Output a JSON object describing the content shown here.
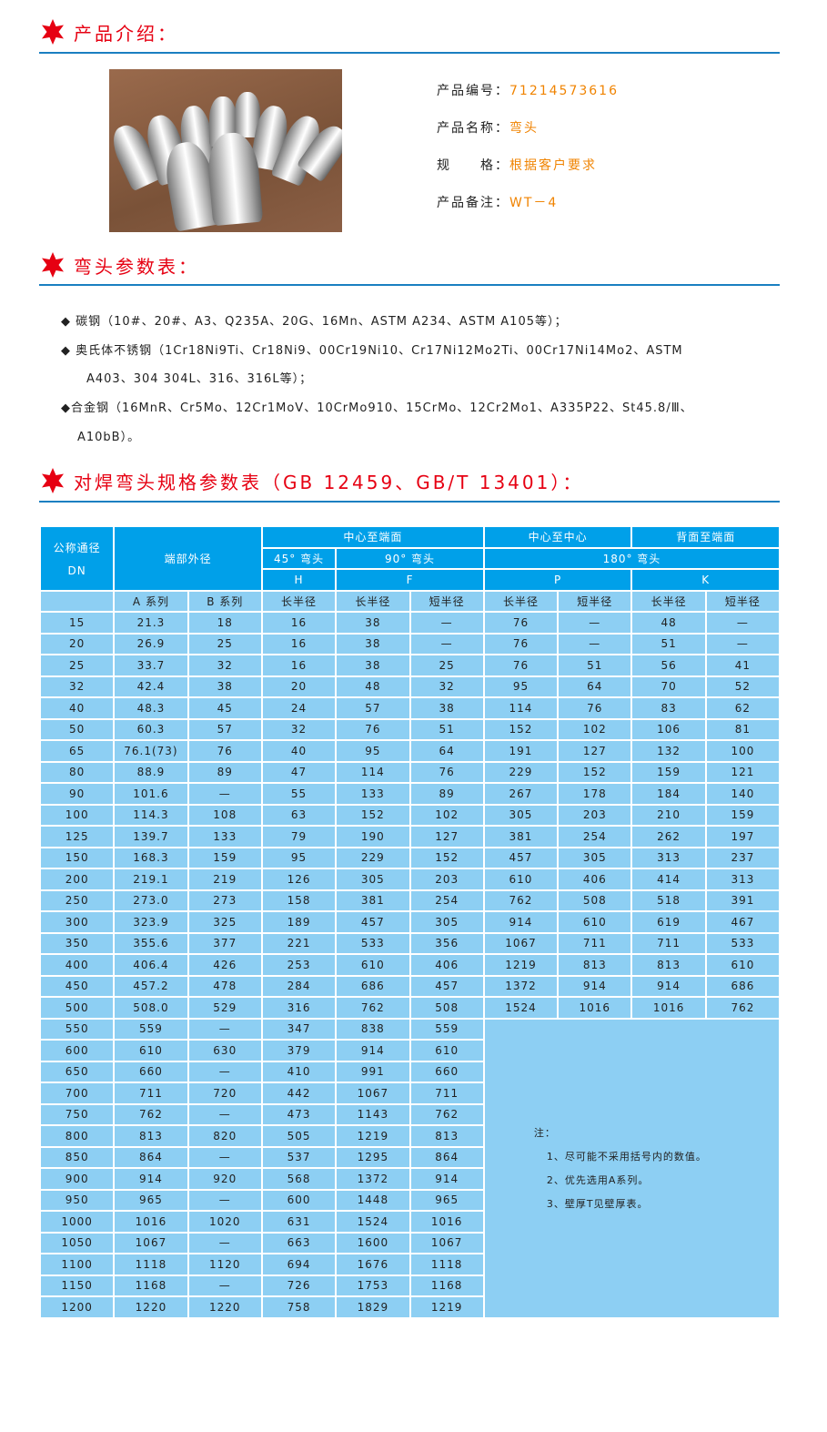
{
  "sections": {
    "intro_title": "产品介绍：",
    "params_title": "弯头参数表：",
    "spec_title": "对焊弯头规格参数表（GB 12459、GB/T 13401）："
  },
  "colors": {
    "accent_red": "#e60012",
    "rule_blue": "#1a7fc1",
    "value_orange": "#f08300",
    "header_blue": "#00a0e9",
    "cell_blue": "#8dcff3"
  },
  "product": {
    "image_alt": "stainless steel elbows",
    "fields": [
      {
        "label": "产品编号：",
        "value": "71214573616"
      },
      {
        "label": "产品名称：",
        "value": "弯头"
      },
      {
        "label": "规　　格：",
        "value": "根据客户要求"
      },
      {
        "label": "产品备注：",
        "value": "WT－4"
      }
    ]
  },
  "materials": [
    "◆  碳钢（10#、20#、A3、Q235A、20G、16Mn、ASTM A234、ASTM A105等）；",
    "◆  奥氏体不锈钢（1Cr18Ni9Ti、Cr18Ni9、00Cr19Ni10、Cr17Ni12Mo2Ti、00Cr17Ni14Mo2、ASTM",
    "A403、304 304L、316、316L等）；",
    "◆合金钢（16MnR、Cr5Mo、12Cr1MoV、10CrMo910、15CrMo、12Cr2Mo1、A335P22、St45.8/Ⅲ、",
    "A10bB）。"
  ],
  "table": {
    "h_dn": "公称通径",
    "h_dn2": "DN",
    "h_od": "端部外径",
    "h_center_end": "中心至端面",
    "h_center_center": "中心至中心",
    "h_back_end": "背面至端面",
    "h_45": "45° 弯头",
    "h_90": "90° 弯头",
    "h_180": "180° 弯头",
    "h_H": "H",
    "h_F": "F",
    "h_P": "P",
    "h_K": "K",
    "sub": [
      "A 系列",
      "B 系列",
      "长半径",
      "长半径",
      "短半径",
      "长半径",
      "短半径",
      "长半径",
      "短半径"
    ],
    "rows": [
      [
        "15",
        "21.3",
        "18",
        "16",
        "38",
        "—",
        "76",
        "—",
        "48",
        "—"
      ],
      [
        "20",
        "26.9",
        "25",
        "16",
        "38",
        "—",
        "76",
        "—",
        "51",
        "—"
      ],
      [
        "25",
        "33.7",
        "32",
        "16",
        "38",
        "25",
        "76",
        "51",
        "56",
        "41"
      ],
      [
        "32",
        "42.4",
        "38",
        "20",
        "48",
        "32",
        "95",
        "64",
        "70",
        "52"
      ],
      [
        "40",
        "48.3",
        "45",
        "24",
        "57",
        "38",
        "114",
        "76",
        "83",
        "62"
      ],
      [
        "50",
        "60.3",
        "57",
        "32",
        "76",
        "51",
        "152",
        "102",
        "106",
        "81"
      ],
      [
        "65",
        "76.1(73)",
        "76",
        "40",
        "95",
        "64",
        "191",
        "127",
        "132",
        "100"
      ],
      [
        "80",
        "88.9",
        "89",
        "47",
        "114",
        "76",
        "229",
        "152",
        "159",
        "121"
      ],
      [
        "90",
        "101.6",
        "—",
        "55",
        "133",
        "89",
        "267",
        "178",
        "184",
        "140"
      ],
      [
        "100",
        "114.3",
        "108",
        "63",
        "152",
        "102",
        "305",
        "203",
        "210",
        "159"
      ],
      [
        "125",
        "139.7",
        "133",
        "79",
        "190",
        "127",
        "381",
        "254",
        "262",
        "197"
      ],
      [
        "150",
        "168.3",
        "159",
        "95",
        "229",
        "152",
        "457",
        "305",
        "313",
        "237"
      ],
      [
        "200",
        "219.1",
        "219",
        "126",
        "305",
        "203",
        "610",
        "406",
        "414",
        "313"
      ],
      [
        "250",
        "273.0",
        "273",
        "158",
        "381",
        "254",
        "762",
        "508",
        "518",
        "391"
      ],
      [
        "300",
        "323.9",
        "325",
        "189",
        "457",
        "305",
        "914",
        "610",
        "619",
        "467"
      ],
      [
        "350",
        "355.6",
        "377",
        "221",
        "533",
        "356",
        "1067",
        "711",
        "711",
        "533"
      ],
      [
        "400",
        "406.4",
        "426",
        "253",
        "610",
        "406",
        "1219",
        "813",
        "813",
        "610"
      ],
      [
        "450",
        "457.2",
        "478",
        "284",
        "686",
        "457",
        "1372",
        "914",
        "914",
        "686"
      ],
      [
        "500",
        "508.0",
        "529",
        "316",
        "762",
        "508",
        "1524",
        "1016",
        "1016",
        "762"
      ],
      [
        "550",
        "559",
        "—",
        "347",
        "838",
        "559"
      ],
      [
        "600",
        "610",
        "630",
        "379",
        "914",
        "610"
      ],
      [
        "650",
        "660",
        "—",
        "410",
        "991",
        "660"
      ],
      [
        "700",
        "711",
        "720",
        "442",
        "1067",
        "711"
      ],
      [
        "750",
        "762",
        "—",
        "473",
        "1143",
        "762"
      ],
      [
        "800",
        "813",
        "820",
        "505",
        "1219",
        "813"
      ],
      [
        "850",
        "864",
        "—",
        "537",
        "1295",
        "864"
      ],
      [
        "900",
        "914",
        "920",
        "568",
        "1372",
        "914"
      ],
      [
        "950",
        "965",
        "—",
        "600",
        "1448",
        "965"
      ],
      [
        "1000",
        "1016",
        "1020",
        "631",
        "1524",
        "1016"
      ],
      [
        "1050",
        "1067",
        "—",
        "663",
        "1600",
        "1067"
      ],
      [
        "1100",
        "1118",
        "1120",
        "694",
        "1676",
        "1118"
      ],
      [
        "1150",
        "1168",
        "—",
        "726",
        "1753",
        "1168"
      ],
      [
        "1200",
        "1220",
        "1220",
        "758",
        "1829",
        "1219"
      ]
    ],
    "notes": {
      "title": "注：",
      "items": [
        "1、尽可能不采用括号内的数值。",
        "2、优先选用A系列。",
        "3、壁厚T见壁厚表。"
      ]
    }
  }
}
